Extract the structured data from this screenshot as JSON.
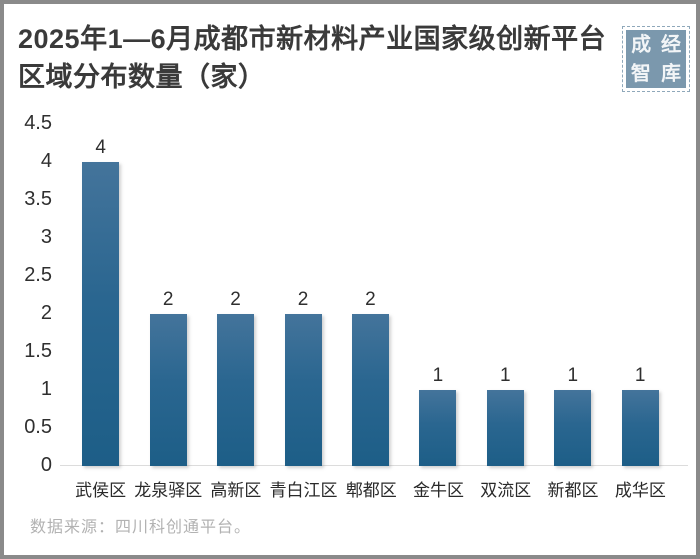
{
  "title": {
    "line1": "2025年1—6月成都市新材料产业国家级创新平台",
    "line2": "区域分布数量（家）"
  },
  "seal": {
    "chars": [
      "成",
      "经",
      "智",
      "库"
    ],
    "color": "#7b98ad"
  },
  "source": "数据来源：四川科创通平台。",
  "colors": {
    "bar_top": "#44749b",
    "bar_bottom": "#1d5e87",
    "frame_border": "#8a8a8a",
    "title_text": "#3a3a3a",
    "axis_text": "#2f2f2f",
    "source_text": "#b2b2b2",
    "baseline": "#dcdcdc"
  },
  "chart_data": {
    "type": "bar",
    "title": "2025年1—6月成都市新材料产业国家级创新平台区域分布数量（家）",
    "categories": [
      "武侯区",
      "龙泉驿区",
      "高新区",
      "青白江区",
      "郫都区",
      "金牛区",
      "双流区",
      "新都区",
      "成华区"
    ],
    "values": [
      4,
      2,
      2,
      2,
      2,
      1,
      1,
      1,
      1
    ],
    "xlabel": "",
    "ylabel": "",
    "ylim": [
      0,
      4.5
    ],
    "yticks": [
      0,
      0.5,
      1,
      1.5,
      2,
      2.5,
      3,
      3.5,
      4,
      4.5
    ],
    "grid": false,
    "data_labels": true,
    "legend": null
  }
}
